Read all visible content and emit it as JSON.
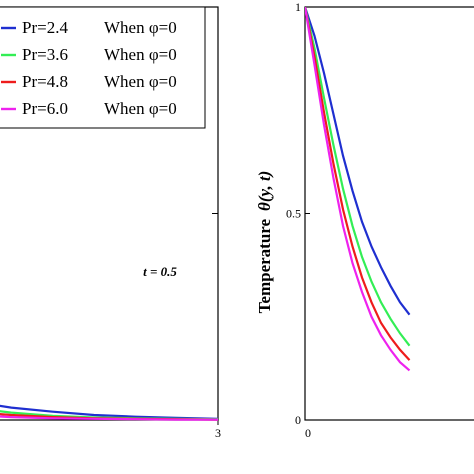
{
  "chart_data": [
    {
      "type": "line",
      "title": "",
      "xlabel": "",
      "ylabel": "",
      "xlim": [
        0,
        3
      ],
      "ylim": [
        0,
        1
      ],
      "x_ticks": [
        "3"
      ],
      "y_ticks": [],
      "annotation": "t = 0.5",
      "legend": {
        "placement": "top-left",
        "entries": [
          {
            "label": "Pr=2.4",
            "condition": "When φ=0",
            "color": "#1f2fd0"
          },
          {
            "label": "Pr=3.6",
            "condition": "When φ=0",
            "color": "#33ee55"
          },
          {
            "label": "Pr=4.8",
            "condition": "When φ=0",
            "color": "#ee1c1c"
          },
          {
            "label": "Pr=6.0",
            "condition": "When φ=0",
            "color": "#ee22ee"
          }
        ]
      },
      "series": [
        {
          "name": "Pr=2.4",
          "color": "#1f2fd0",
          "x": [
            0,
            0.5,
            1.0,
            1.5,
            2.0,
            2.5,
            3.0
          ],
          "y": [
            0.045,
            0.03,
            0.02,
            0.012,
            0.008,
            0.005,
            0.003
          ]
        },
        {
          "name": "Pr=3.6",
          "color": "#33ee55",
          "x": [
            0,
            0.5,
            1.0,
            1.5,
            2.0,
            2.5,
            3.0
          ],
          "y": [
            0.03,
            0.018,
            0.01,
            0.006,
            0.004,
            0.003,
            0.002
          ]
        },
        {
          "name": "Pr=4.8",
          "color": "#ee1c1c",
          "x": [
            0,
            0.5,
            1.0,
            1.5,
            2.0,
            2.5,
            3.0
          ],
          "y": [
            0.02,
            0.012,
            0.007,
            0.004,
            0.003,
            0.002,
            0.001
          ]
        },
        {
          "name": "Pr=6.0",
          "color": "#ee22ee",
          "x": [
            0,
            0.5,
            1.0,
            1.5,
            2.0,
            2.5,
            3.0
          ],
          "y": [
            0.012,
            0.007,
            0.004,
            0.003,
            0.002,
            0.001,
            0.001
          ]
        }
      ]
    },
    {
      "type": "line",
      "title": "",
      "xlabel": "",
      "ylabel": "Temperature",
      "ylabel_math": "θ(y, t)",
      "xlim": [
        0,
        3
      ],
      "ylim": [
        0,
        1
      ],
      "x_ticks": [
        "0"
      ],
      "y_ticks": [
        "0",
        "0.5",
        "1"
      ],
      "series": [
        {
          "name": "Pr=2.4",
          "color": "#1f2fd0",
          "x": [
            0,
            0.1,
            0.2,
            0.3,
            0.4,
            0.5,
            0.6,
            0.7,
            0.8,
            0.9,
            1.0,
            1.1
          ],
          "y": [
            1.0,
            0.93,
            0.84,
            0.74,
            0.64,
            0.555,
            0.48,
            0.42,
            0.37,
            0.325,
            0.285,
            0.255
          ]
        },
        {
          "name": "Pr=3.6",
          "color": "#33ee55",
          "x": [
            0,
            0.1,
            0.2,
            0.3,
            0.4,
            0.5,
            0.6,
            0.7,
            0.8,
            0.9,
            1.0,
            1.1
          ],
          "y": [
            1.0,
            0.9,
            0.78,
            0.665,
            0.56,
            0.47,
            0.395,
            0.335,
            0.285,
            0.245,
            0.21,
            0.18
          ]
        },
        {
          "name": "Pr=4.8",
          "color": "#ee1c1c",
          "x": [
            0,
            0.1,
            0.2,
            0.3,
            0.4,
            0.5,
            0.6,
            0.7,
            0.8,
            0.9,
            1.0,
            1.1
          ],
          "y": [
            1.0,
            0.88,
            0.745,
            0.62,
            0.51,
            0.42,
            0.345,
            0.285,
            0.235,
            0.2,
            0.17,
            0.145
          ]
        },
        {
          "name": "Pr=6.0",
          "color": "#ee22ee",
          "x": [
            0,
            0.1,
            0.2,
            0.3,
            0.4,
            0.5,
            0.6,
            0.7,
            0.8,
            0.9,
            1.0,
            1.1
          ],
          "y": [
            1.0,
            0.86,
            0.715,
            0.585,
            0.47,
            0.38,
            0.31,
            0.25,
            0.205,
            0.17,
            0.14,
            0.12
          ]
        }
      ]
    }
  ]
}
